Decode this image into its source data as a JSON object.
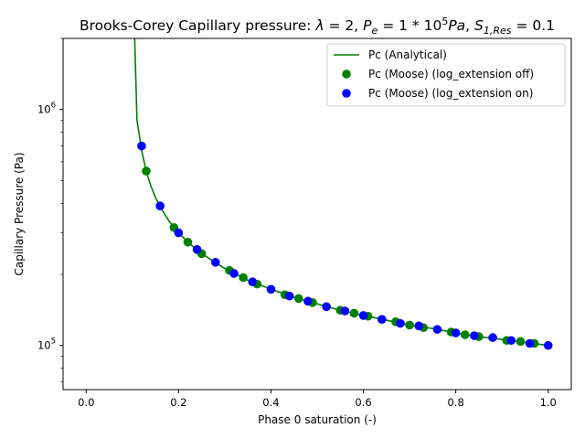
{
  "chart_data": {
    "type": "scatter",
    "title": "Brooks-Corey Capillary pressure: λ = 2, P_e = 1*10^5 Pa, S_1,Res = 0.1",
    "xlabel": "Phase 0 saturation (-)",
    "ylabel": "Capillary Pressure (Pa)",
    "xlim": [
      -0.05,
      1.05
    ],
    "ylim": [
      65000,
      2000000
    ],
    "yscale": "log",
    "grid": false,
    "legend_position": "top-right",
    "x_ticks": [
      "0.0",
      "0.2",
      "0.4",
      "0.6",
      "0.8",
      "1.0"
    ],
    "y_ticks": [
      {
        "value": 100000,
        "base": "10",
        "exp": "5"
      },
      {
        "value": 1000000,
        "base": "10",
        "exp": "6"
      }
    ],
    "series": [
      {
        "name": "Pc (Analytical)",
        "kind": "line",
        "color": "#008000",
        "x": [
          0.105,
          0.11,
          0.12,
          0.13,
          0.14,
          0.15,
          0.16,
          0.18,
          0.2,
          0.22,
          0.25,
          0.3,
          0.35,
          0.4,
          0.45,
          0.5,
          0.55,
          0.6,
          0.65,
          0.7,
          0.75,
          0.8,
          0.85,
          0.9,
          0.95,
          1.0
        ],
        "y": [
          2000000,
          900000,
          670000,
          548000,
          474000,
          424000,
          387000,
          335000,
          300000,
          274000,
          245000,
          212000,
          189000,
          173000,
          160000,
          150000,
          141000,
          134000,
          128000,
          122000,
          118000,
          113000,
          109000,
          106000,
          103000,
          100000
        ]
      },
      {
        "name": "Pc (Moose) (log_extension off)",
        "kind": "points",
        "color": "#008000",
        "x": [
          0.13,
          0.19,
          0.22,
          0.25,
          0.31,
          0.34,
          0.37,
          0.43,
          0.46,
          0.49,
          0.55,
          0.58,
          0.61,
          0.67,
          0.7,
          0.73,
          0.79,
          0.82,
          0.85,
          0.91,
          0.94,
          0.97
        ],
        "y": [
          548000,
          316000,
          274000,
          245000,
          208000,
          194000,
          182000,
          164000,
          158000,
          152000,
          141000,
          137000,
          133000,
          126000,
          122000,
          119000,
          114000,
          111000,
          109000,
          105000,
          104000,
          102000
        ]
      },
      {
        "name": "Pc (Moose) (log_extension on)",
        "kind": "points",
        "color": "#0000ff",
        "x": [
          0.12,
          0.16,
          0.2,
          0.24,
          0.28,
          0.32,
          0.36,
          0.4,
          0.44,
          0.48,
          0.52,
          0.56,
          0.6,
          0.64,
          0.68,
          0.72,
          0.76,
          0.8,
          0.84,
          0.88,
          0.92,
          0.96,
          1.0
        ],
        "y": [
          700000,
          390000,
          300000,
          255000,
          225000,
          202000,
          186000,
          173000,
          162000,
          154000,
          146000,
          140000,
          134000,
          129000,
          124000,
          121000,
          117000,
          113000,
          110000,
          108000,
          105000,
          102000,
          100000
        ]
      }
    ]
  }
}
